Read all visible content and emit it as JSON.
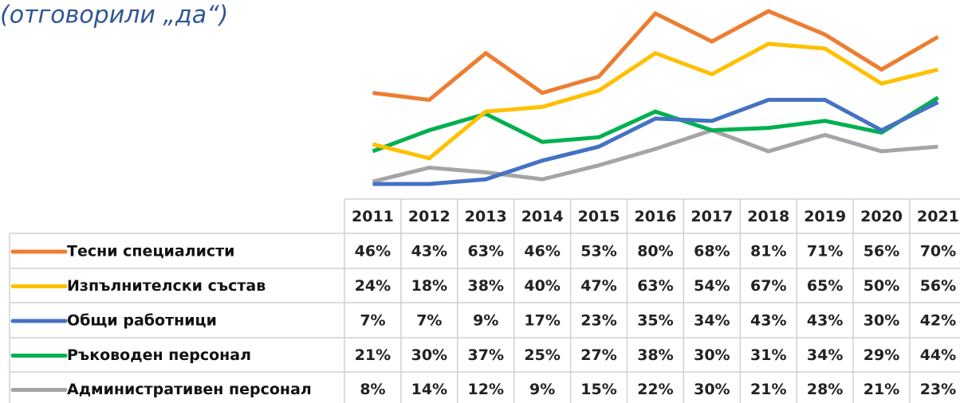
{
  "chart_data": {
    "type": "line",
    "subtitle": "(отговорили „да“)",
    "categories": [
      "2011",
      "2012",
      "2013",
      "2014",
      "2015",
      "2016",
      "2017",
      "2018",
      "2019",
      "2020",
      "2021"
    ],
    "series": [
      {
        "name": "Тесни специалисти",
        "color": "#ed7d31",
        "values": [
          46,
          43,
          63,
          46,
          53,
          80,
          68,
          81,
          71,
          56,
          70
        ],
        "value_labels": [
          "46%",
          "43%",
          "63%",
          "46%",
          "53%",
          "80%",
          "68%",
          "81%",
          "71%",
          "56%",
          "70%"
        ]
      },
      {
        "name": "Изпълнителски състав",
        "color": "#ffc000",
        "values": [
          24,
          18,
          38,
          40,
          47,
          63,
          54,
          67,
          65,
          50,
          56
        ],
        "value_labels": [
          "24%",
          "18%",
          "38%",
          "40%",
          "47%",
          "63%",
          "54%",
          "67%",
          "65%",
          "50%",
          "56%"
        ]
      },
      {
        "name": "Общи работници",
        "color": "#4472c4",
        "values": [
          7,
          7,
          9,
          17,
          23,
          35,
          34,
          43,
          43,
          30,
          42
        ],
        "value_labels": [
          "7%",
          "7%",
          "9%",
          "17%",
          "23%",
          "35%",
          "34%",
          "43%",
          "43%",
          "30%",
          "42%"
        ]
      },
      {
        "name": "Ръководен персонал",
        "color": "#00b050",
        "values": [
          21,
          30,
          37,
          25,
          27,
          38,
          30,
          31,
          34,
          29,
          44
        ],
        "value_labels": [
          "21%",
          "30%",
          "37%",
          "25%",
          "27%",
          "38%",
          "30%",
          "31%",
          "34%",
          "29%",
          "44%"
        ]
      },
      {
        "name": "Административен персонал",
        "color": "#a5a5a5",
        "values": [
          8,
          14,
          12,
          9,
          15,
          22,
          30,
          21,
          28,
          21,
          23
        ],
        "value_labels": [
          "8%",
          "14%",
          "12%",
          "9%",
          "15%",
          "22%",
          "30%",
          "21%",
          "28%",
          "21%",
          "23%"
        ]
      }
    ]
  }
}
